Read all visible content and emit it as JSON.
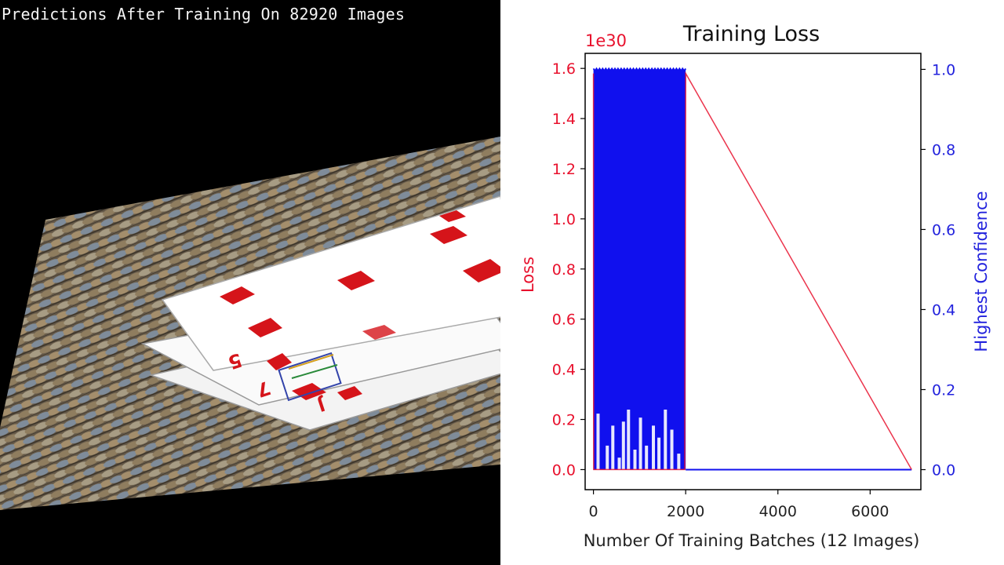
{
  "left_panel": {
    "title": "Predictions After Training On 82920 Images"
  },
  "chart_data": {
    "type": "line",
    "title": "Training Loss",
    "xlabel": "Number Of Training Batches (12 Images)",
    "ylabel": "Loss",
    "ylabel_right": "Highest Confidence",
    "y_offset_label": "1e30",
    "xlim": [
      -180,
      7100
    ],
    "ylim": [
      -0.08,
      1.66
    ],
    "ylim_right": [
      -0.05,
      1.04
    ],
    "x_ticks": [
      0,
      2000,
      4000,
      6000
    ],
    "x_tick_labels": [
      "0",
      "2000",
      "4000",
      "6000"
    ],
    "y_ticks": [
      0.0,
      0.2,
      0.4,
      0.6,
      0.8,
      1.0,
      1.2,
      1.4,
      1.6
    ],
    "y_tick_labels": [
      "0.0",
      "0.2",
      "0.4",
      "0.6",
      "0.8",
      "1.0",
      "1.2",
      "1.4",
      "1.6"
    ],
    "y_ticks_right": [
      0.0,
      0.2,
      0.4,
      0.6,
      0.8,
      1.0
    ],
    "y_tick_labels_right": [
      "0.0",
      "0.2",
      "0.4",
      "0.6",
      "0.8",
      "1.0"
    ],
    "grid": false,
    "series": [
      {
        "axis": "left",
        "color": "#e8112d",
        "x": [
          0,
          2,
          4,
          6,
          1500,
          1980,
          2000,
          6900
        ],
        "y": [
          1.58,
          0.6,
          0.2,
          0.0,
          0.0,
          0.0,
          1.58,
          0.0
        ]
      },
      {
        "axis": "right",
        "color": "#1010ee",
        "x_range": [
          0,
          2000
        ],
        "y_range": [
          0.0,
          1.0
        ],
        "dips": [
          {
            "x": 100,
            "y": 0.14
          },
          {
            "x": 300,
            "y": 0.06
          },
          {
            "x": 420,
            "y": 0.11
          },
          {
            "x": 560,
            "y": 0.03
          },
          {
            "x": 650,
            "y": 0.12
          },
          {
            "x": 760,
            "y": 0.15
          },
          {
            "x": 900,
            "y": 0.05
          },
          {
            "x": 1020,
            "y": 0.13
          },
          {
            "x": 1150,
            "y": 0.06
          },
          {
            "x": 1300,
            "y": 0.11
          },
          {
            "x": 1420,
            "y": 0.08
          },
          {
            "x": 1560,
            "y": 0.15
          },
          {
            "x": 1700,
            "y": 0.1
          },
          {
            "x": 1850,
            "y": 0.04
          }
        ],
        "tail_x": [
          2000,
          6900
        ],
        "tail_y": [
          0.0,
          0.0
        ]
      }
    ],
    "colors": {
      "loss": "#e8112d",
      "confidence": "#2222dd"
    }
  }
}
